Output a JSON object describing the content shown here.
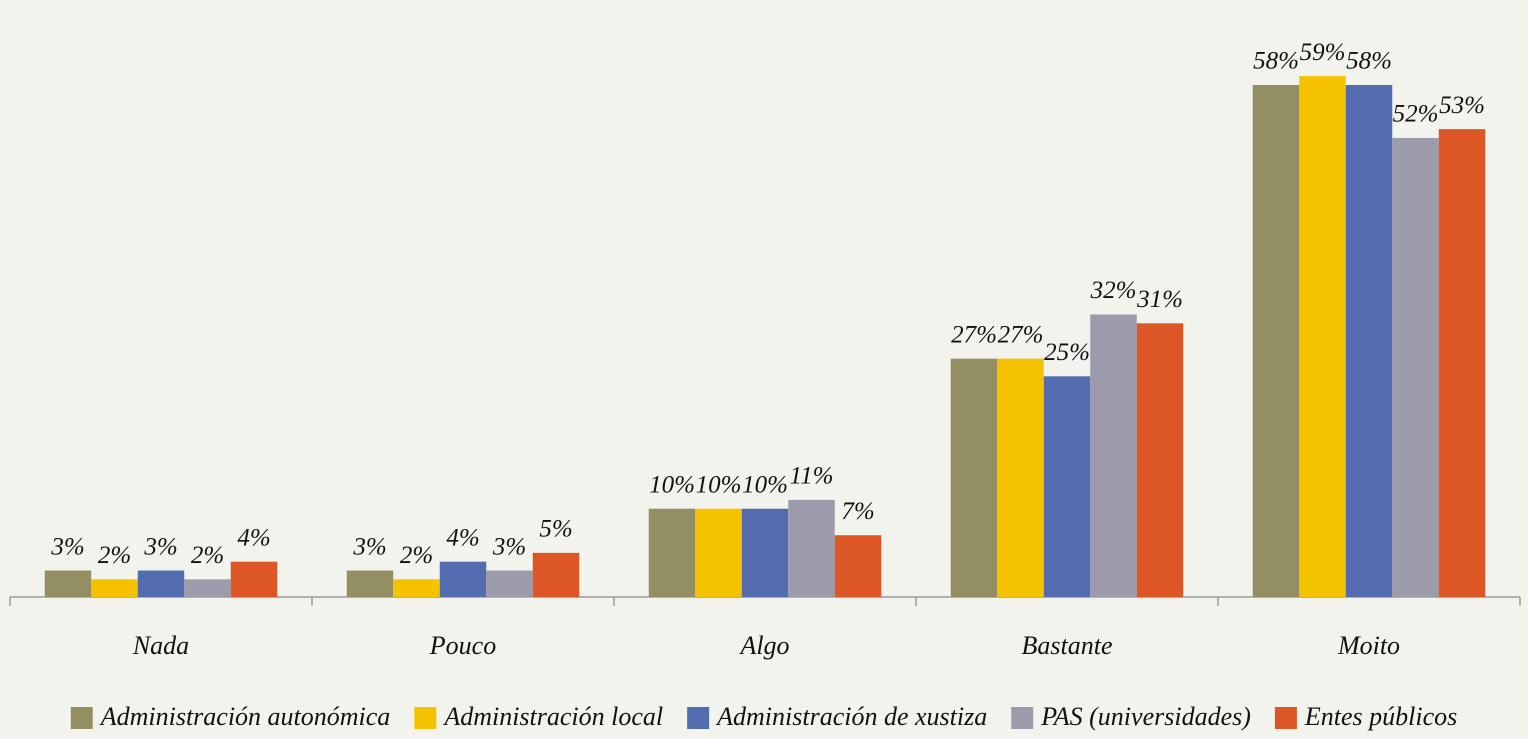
{
  "chart_data": {
    "type": "bar",
    "categories": [
      "Nada",
      "Pouco",
      "Algo",
      "Bastante",
      "Moito"
    ],
    "ylim": [
      0,
      64
    ],
    "legend": "bottom",
    "series": [
      {
        "name": "Administración autonómica",
        "color": "#938f62",
        "values": [
          3,
          3,
          10,
          27,
          58
        ],
        "value_labels": [
          "3%",
          "3%",
          "10%",
          "27%",
          "58%"
        ]
      },
      {
        "name": "Administración local",
        "color": "#f5c200",
        "values": [
          2,
          2,
          10,
          27,
          59
        ],
        "value_labels": [
          "2%",
          "2%",
          "10%",
          "27%",
          "59%"
        ]
      },
      {
        "name": "Administración de xustiza",
        "color": "#536cb0",
        "values": [
          3,
          4,
          10,
          25,
          58
        ],
        "value_labels": [
          "3%",
          "4%",
          "10%",
          "25%",
          "58%"
        ]
      },
      {
        "name": "PAS (universidades)",
        "color": "#9b9bac",
        "values": [
          2,
          3,
          11,
          32,
          52
        ],
        "value_labels": [
          "2%",
          "3%",
          "11%",
          "32%",
          "52%"
        ]
      },
      {
        "name": "Entes públicos",
        "color": "#dd5726",
        "values": [
          4,
          5,
          7,
          31,
          53
        ],
        "value_labels": [
          "4%",
          "5%",
          "7%",
          "31%",
          "53%"
        ]
      }
    ]
  }
}
